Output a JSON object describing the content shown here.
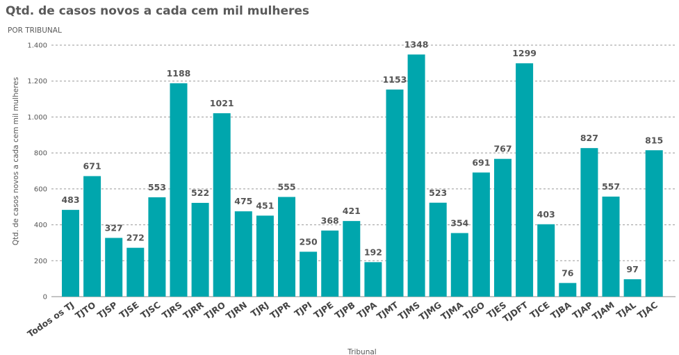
{
  "chart_data": {
    "type": "bar",
    "title": "Qtd. de casos novos a cada cem mil mulheres",
    "subtitle": "POR TRIBUNAL",
    "xlabel": "Tribunal",
    "ylabel": "Qtd. de casos novos a cada cem mil mulheres",
    "ylim": [
      0,
      1400
    ],
    "yticks": [
      0,
      200,
      400,
      600,
      800,
      1000,
      1200,
      1400
    ],
    "ytick_labels": [
      "0",
      "200",
      "400",
      "600",
      "800",
      "1.000",
      "1.200",
      "1.400"
    ],
    "grid": true,
    "bar_color": "#00a6ad",
    "categories": [
      "Todos os TJ",
      "TJTO",
      "TJSP",
      "TJSE",
      "TJSC",
      "TJRS",
      "TJRR",
      "TJRO",
      "TJRN",
      "TJRJ",
      "TJPR",
      "TJPI",
      "TJPE",
      "TJPB",
      "TJPA",
      "TJMT",
      "TJMS",
      "TJMG",
      "TJMA",
      "TJGO",
      "TJES",
      "TJDFT",
      "TJCE",
      "TJBA",
      "TJAP",
      "TJAM",
      "TJAL",
      "TJAC"
    ],
    "values": [
      483,
      671,
      327,
      272,
      553,
      1188,
      522,
      1021,
      475,
      451,
      555,
      250,
      368,
      421,
      192,
      1153,
      1348,
      523,
      354,
      691,
      767,
      1299,
      403,
      76,
      827,
      557,
      97,
      815
    ]
  }
}
